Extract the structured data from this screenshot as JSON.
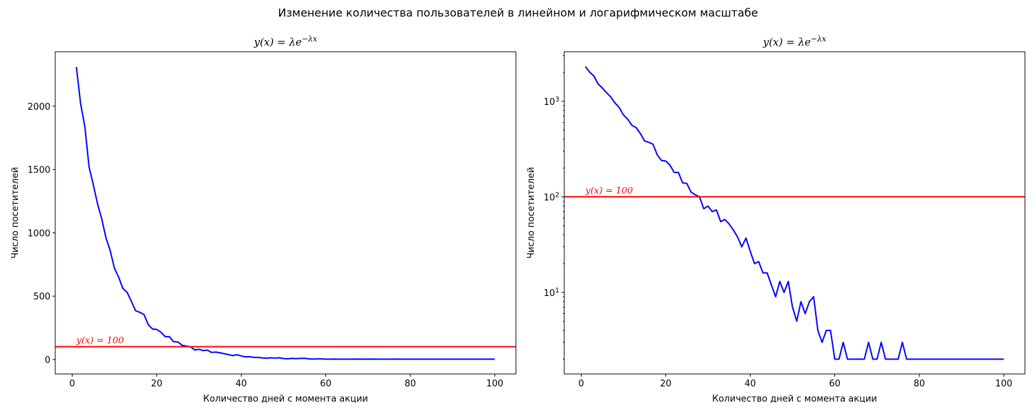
{
  "suptitle": "Изменение количества пользователей в линейном и логарифмическом масштабе",
  "colors": {
    "series": "#0000ff",
    "threshold": "#ff0000",
    "axes": "#000000"
  },
  "chart_data": [
    {
      "type": "line",
      "scale": "linear",
      "title": "y(x) = λe^{−λx}",
      "xlabel": "Количество дней с момента акции",
      "ylabel": "Число посетителей",
      "xlim": [
        -4,
        105
      ],
      "ylim": [
        -115,
        2430
      ],
      "xticks": [
        0,
        20,
        40,
        60,
        80,
        100
      ],
      "yticks": [
        0,
        500,
        1000,
        1500,
        2000
      ],
      "grid": false,
      "threshold": {
        "y": 100,
        "label": "y(x) = 100",
        "color": "#ff0000"
      },
      "series": [
        {
          "color": "#0000ff",
          "x": [
            1,
            2,
            3,
            4,
            5,
            6,
            7,
            8,
            9,
            10,
            11,
            12,
            13,
            14,
            15,
            16,
            17,
            18,
            19,
            20,
            21,
            22,
            23,
            24,
            25,
            26,
            27,
            28,
            29,
            30,
            31,
            32,
            33,
            34,
            35,
            36,
            37,
            38,
            39,
            40,
            41,
            42,
            43,
            44,
            45,
            46,
            47,
            48,
            49,
            50,
            51,
            52,
            53,
            54,
            55,
            56,
            57,
            58,
            59,
            60,
            61,
            62,
            63,
            64,
            65,
            66,
            67,
            68,
            69,
            70,
            71,
            72,
            73,
            74,
            75,
            76,
            77,
            78,
            79,
            80,
            81,
            82,
            83,
            84,
            85,
            86,
            87,
            88,
            89,
            90,
            91,
            92,
            93,
            94,
            95,
            96,
            97,
            98,
            99,
            100
          ],
          "y": [
            2310,
            2020,
            1840,
            1520,
            1380,
            1230,
            1110,
            960,
            860,
            720,
            650,
            560,
            530,
            460,
            385,
            372,
            355,
            275,
            240,
            237,
            215,
            180,
            180,
            140,
            138,
            112,
            105,
            100,
            75,
            80,
            70,
            73,
            55,
            58,
            52,
            45,
            38,
            30,
            37,
            27,
            20,
            21,
            16,
            16,
            12,
            9,
            13,
            10,
            13,
            7,
            5,
            8,
            6,
            8,
            9,
            4,
            3,
            4,
            4,
            2,
            2,
            3,
            2,
            2,
            2,
            2,
            2,
            3,
            2,
            2,
            3,
            2,
            2,
            2,
            2,
            3,
            2,
            2,
            2,
            2,
            2,
            2,
            2,
            2,
            2,
            2,
            2,
            2,
            2,
            2,
            2,
            2,
            2,
            2,
            2,
            2,
            2,
            2,
            2,
            2
          ]
        }
      ]
    },
    {
      "type": "line",
      "scale": "log",
      "title": "y(x) = λe^{−λx}",
      "xlabel": "Количество дней с момента акции",
      "ylabel": "Число посетителей",
      "xlim": [
        -4,
        105
      ],
      "ylim": [
        1.4,
        3300
      ],
      "xticks": [
        0,
        20,
        40,
        60,
        80,
        100
      ],
      "yticks": [
        10,
        100,
        1000
      ],
      "yticklabels": [
        "10^1",
        "10^2",
        "10^3"
      ],
      "grid": false,
      "threshold": {
        "y": 100,
        "label": "y(x) = 100",
        "color": "#ff0000"
      },
      "series": [
        {
          "color": "#0000ff",
          "x": [
            1,
            2,
            3,
            4,
            5,
            6,
            7,
            8,
            9,
            10,
            11,
            12,
            13,
            14,
            15,
            16,
            17,
            18,
            19,
            20,
            21,
            22,
            23,
            24,
            25,
            26,
            27,
            28,
            29,
            30,
            31,
            32,
            33,
            34,
            35,
            36,
            37,
            38,
            39,
            40,
            41,
            42,
            43,
            44,
            45,
            46,
            47,
            48,
            49,
            50,
            51,
            52,
            53,
            54,
            55,
            56,
            57,
            58,
            59,
            60,
            61,
            62,
            63,
            64,
            65,
            66,
            67,
            68,
            69,
            70,
            71,
            72,
            73,
            74,
            75,
            76,
            77,
            78,
            79,
            80,
            81,
            82,
            83,
            84,
            85,
            86,
            87,
            88,
            89,
            90,
            91,
            92,
            93,
            94,
            95,
            96,
            97,
            98,
            99,
            100
          ],
          "y": [
            2310,
            2020,
            1840,
            1520,
            1380,
            1230,
            1110,
            960,
            860,
            720,
            650,
            560,
            530,
            460,
            385,
            372,
            355,
            275,
            240,
            237,
            215,
            180,
            180,
            140,
            138,
            112,
            105,
            100,
            75,
            80,
            70,
            73,
            55,
            58,
            52,
            45,
            38,
            30,
            37,
            27,
            20,
            21,
            16,
            16,
            12,
            9,
            13,
            10,
            13,
            7,
            5,
            8,
            6,
            8,
            9,
            4,
            3,
            4,
            4,
            2,
            2,
            3,
            2,
            2,
            2,
            2,
            2,
            3,
            2,
            2,
            3,
            2,
            2,
            2,
            2,
            3,
            2,
            2,
            2,
            2,
            2,
            2,
            2,
            2,
            2,
            2,
            2,
            2,
            2,
            2,
            2,
            2,
            2,
            2,
            2,
            2,
            2,
            2,
            2,
            2
          ]
        }
      ]
    }
  ]
}
